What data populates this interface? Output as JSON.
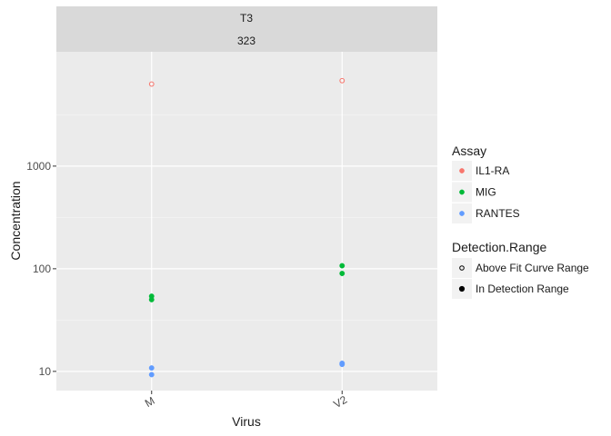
{
  "chart_data": {
    "type": "scatter",
    "facet_labels": [
      "T3",
      "323"
    ],
    "xlabel": "Virus",
    "ylabel": "Concentration",
    "categories": [
      "M",
      "V2"
    ],
    "y_scale": "log10",
    "ylim": [
      6.5,
      13000
    ],
    "y_ticks": [
      10,
      100,
      1000
    ],
    "y_tick_labels": [
      "10",
      "100",
      "1000"
    ],
    "grid": true,
    "legend_assay_title": "Assay",
    "legend_assay": [
      {
        "label": "IL1-RA",
        "color": "#F8766D"
      },
      {
        "label": "MIG",
        "color": "#00BA38"
      },
      {
        "label": "RANTES",
        "color": "#619CFF"
      }
    ],
    "legend_range_title": "Detection.Range",
    "legend_range": [
      {
        "label": "Above Fit Curve Range",
        "shape": "open-circle"
      },
      {
        "label": "In Detection Range",
        "shape": "filled-circle"
      }
    ],
    "legend_placement": "right",
    "series": [
      {
        "name": "IL1-RA",
        "color": "#F8766D",
        "points": [
          {
            "x": "M",
            "y": 6300,
            "range": "Above Fit Curve Range"
          },
          {
            "x": "V2",
            "y": 6800,
            "range": "Above Fit Curve Range"
          }
        ]
      },
      {
        "name": "MIG",
        "color": "#00BA38",
        "points": [
          {
            "x": "M",
            "y": 54,
            "range": "In Detection Range"
          },
          {
            "x": "M",
            "y": 50,
            "range": "In Detection Range"
          },
          {
            "x": "V2",
            "y": 107,
            "range": "In Detection Range"
          },
          {
            "x": "V2",
            "y": 90,
            "range": "In Detection Range"
          }
        ]
      },
      {
        "name": "RANTES",
        "color": "#619CFF",
        "points": [
          {
            "x": "M",
            "y": 10.8,
            "range": "In Detection Range"
          },
          {
            "x": "M",
            "y": 9.3,
            "range": "In Detection Range"
          },
          {
            "x": "V2",
            "y": 12.0,
            "range": "In Detection Range"
          },
          {
            "x": "V2",
            "y": 11.7,
            "range": "In Detection Range"
          }
        ]
      }
    ]
  }
}
